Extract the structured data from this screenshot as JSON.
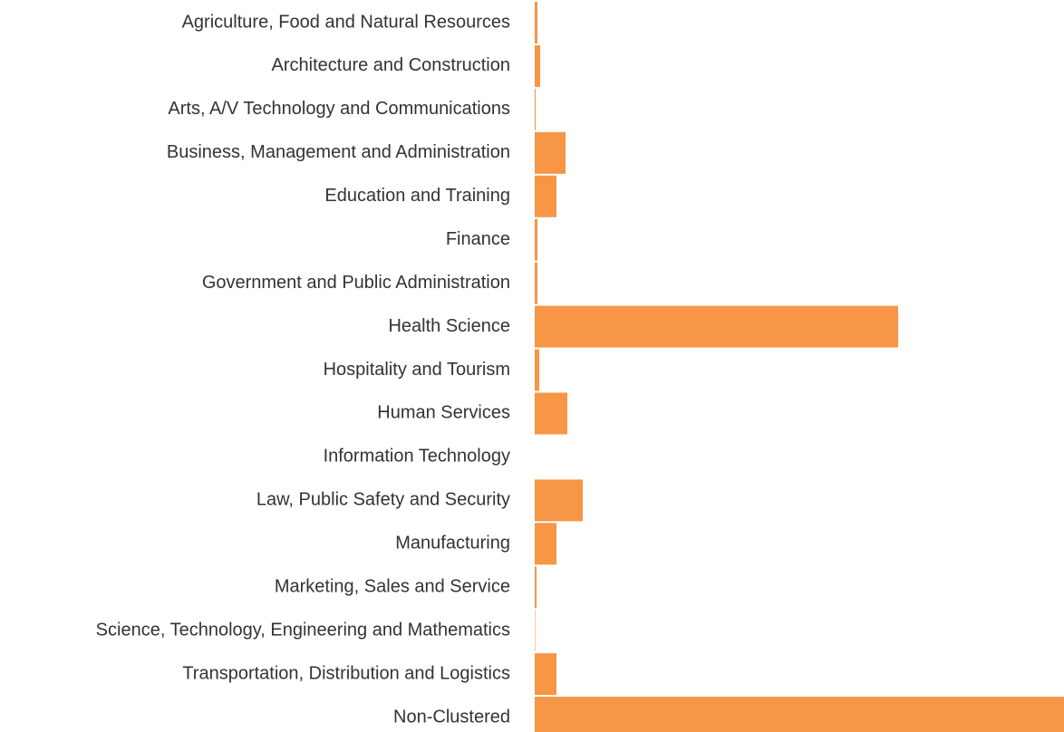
{
  "chart_data": {
    "type": "bar",
    "orientation": "horizontal",
    "categories": [
      "Agriculture, Food and Natural Resources",
      "Architecture and Construction",
      "Arts, A/V Technology and Communications",
      "Business, Management and Administration",
      "Education and Training",
      "Finance",
      "Government and Public Administration",
      "Health Science",
      "Hospitality and Tourism",
      "Human Services",
      "Information Technology",
      "Law, Public Safety and Security",
      "Manufacturing",
      "Marketing, Sales and Service",
      "Science, Technology, Engineering and Mathematics",
      "Transportation, Distribution and Logistics",
      "Non-Clustered"
    ],
    "values": [
      3,
      6,
      1,
      34,
      24,
      3,
      3,
      401,
      5,
      36,
      0,
      53,
      24,
      2,
      0.5,
      24,
      584
    ],
    "color": "#f79646"
  }
}
